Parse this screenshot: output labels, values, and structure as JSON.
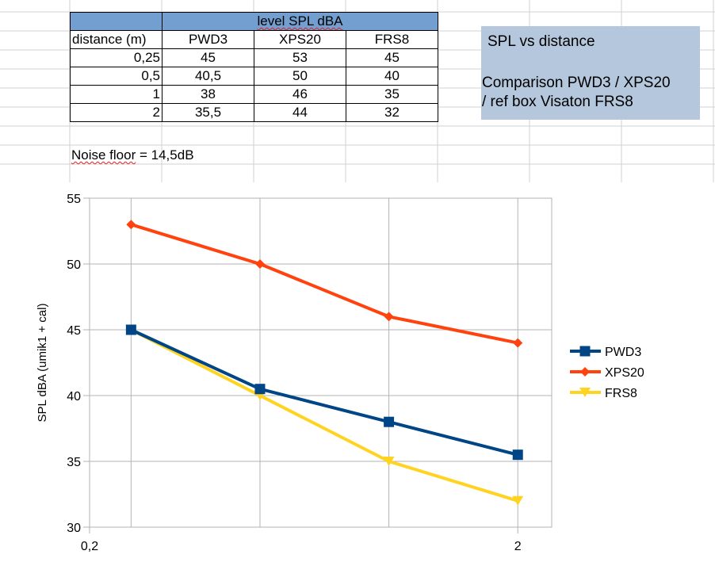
{
  "table": {
    "group_header": "level SPL dBA",
    "columns": [
      "distance (m)",
      "PWD3",
      "XPS20",
      "FRS8"
    ],
    "rows": [
      [
        "0,25",
        "45",
        "53",
        "45"
      ],
      [
        "0,5",
        "40,5",
        "50",
        "40"
      ],
      [
        "1",
        "38",
        "46",
        "35"
      ],
      [
        "2",
        "35,5",
        "44",
        "32"
      ]
    ]
  },
  "noise_floor": {
    "label": "Noise floor",
    "value": "= 14,5dB"
  },
  "note": {
    "title": "SPL vs distance",
    "line1": "Comparison PWD3 / XPS20",
    "line2": "/ ref box Visaton FRS8"
  },
  "chart_data": {
    "type": "line",
    "x": [
      0.25,
      0.5,
      1,
      2
    ],
    "xscale": "log",
    "xlim": [
      0.2,
      2.4
    ],
    "x_tick_labels": [
      "0,2",
      "2"
    ],
    "x_tick_values": [
      0.2,
      2
    ],
    "ylabel": "SPL dBA (umik1 + cal)",
    "ylim": [
      30,
      55
    ],
    "y_ticks": [
      30,
      35,
      40,
      45,
      50,
      55
    ],
    "grid": true,
    "legend_position": "right",
    "series": [
      {
        "name": "PWD3",
        "values": [
          45,
          40.5,
          38,
          35.5
        ],
        "color": "#004586",
        "marker": "square"
      },
      {
        "name": "XPS20",
        "values": [
          53,
          50,
          46,
          44
        ],
        "color": "#ff420e",
        "marker": "diamond"
      },
      {
        "name": "FRS8",
        "values": [
          45,
          40,
          35,
          32
        ],
        "color": "#ffd320",
        "marker": "triangle-down"
      }
    ]
  }
}
